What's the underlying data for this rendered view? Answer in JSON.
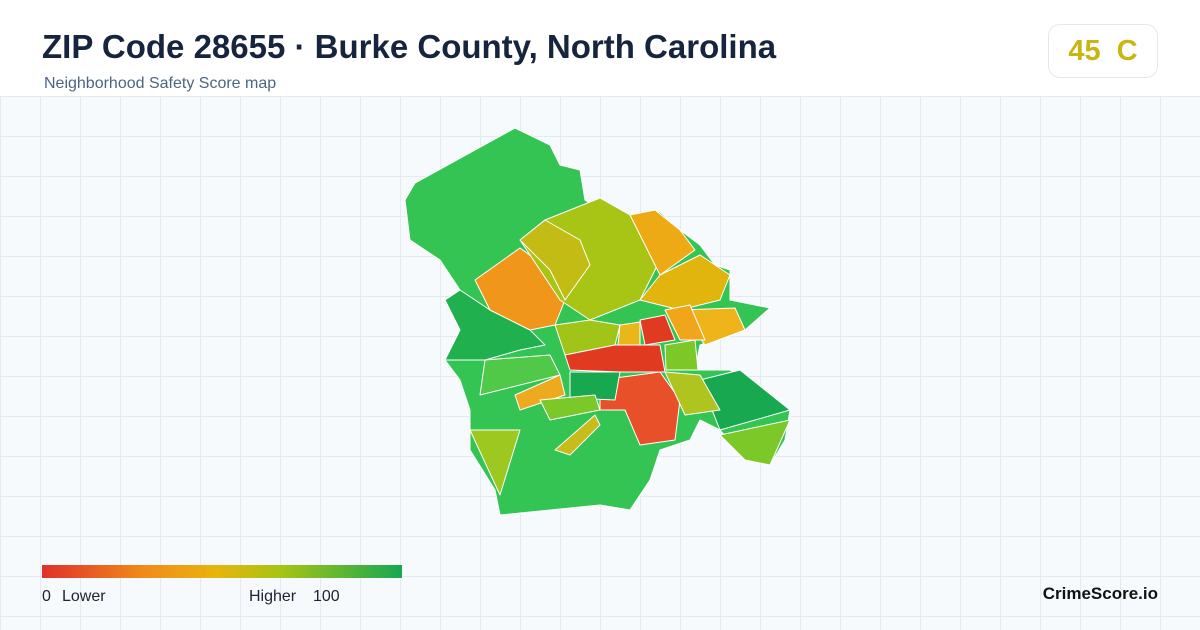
{
  "header": {
    "title": "ZIP Code 28655 · Burke County, North Carolina",
    "subtitle": "Neighborhood Safety Score map"
  },
  "score": {
    "value": 45,
    "grade": "C"
  },
  "legend": {
    "min": 0,
    "min_label": "Lower",
    "max_label": "Higher",
    "max": 100
  },
  "brand": "CrimeScore.io"
}
